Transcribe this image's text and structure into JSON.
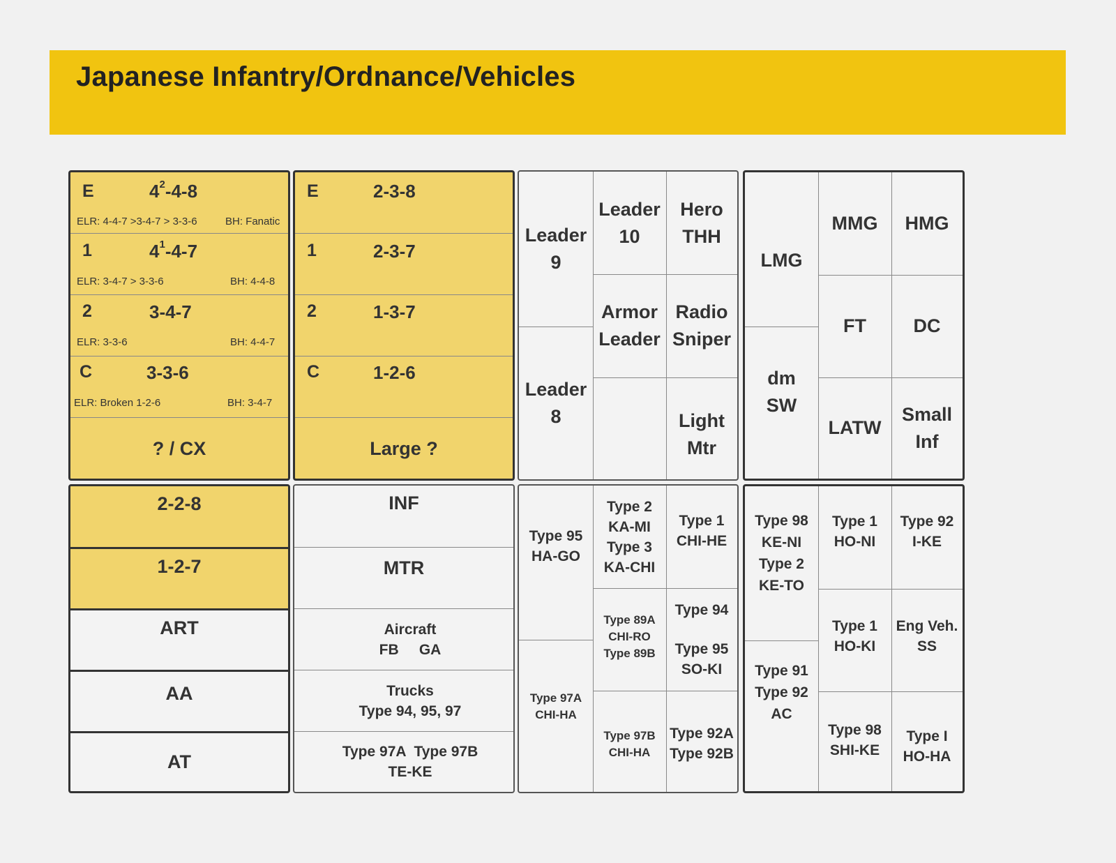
{
  "title": "Japanese Infantry/Ordnance/Vehicles",
  "squads": {
    "rows": [
      {
        "level": "E",
        "value": "4",
        "sup": "2",
        "rest": "-4-8",
        "elr": "ELR: 4-4-7 >3-4-7 > 3-3-6",
        "bh": "BH: Fanatic"
      },
      {
        "level": "1",
        "value": "4",
        "sup": "1",
        "rest": "-4-7",
        "elr": "ELR: 3-4-7 > 3-3-6",
        "bh": "BH: 4-4-8"
      },
      {
        "level": "2",
        "value": "3-4-7",
        "sup": "",
        "rest": "",
        "elr": "ELR: 3-3-6",
        "bh": "BH: 4-4-7"
      },
      {
        "level": "C",
        "value": "3-3-6",
        "sup": "",
        "rest": "",
        "elr": "ELR: Broken 1-2-6",
        "bh": "BH: 3-4-7"
      }
    ],
    "footer": "? / CX"
  },
  "half_squads": {
    "rows": [
      {
        "level": "E",
        "value": "2-3-8"
      },
      {
        "level": "1",
        "value": "2-3-7"
      },
      {
        "level": "2",
        "value": "1-3-7"
      },
      {
        "level": "C",
        "value": "1-2-6"
      }
    ],
    "footer": "Large ?"
  },
  "leaders": {
    "leader9": [
      "Leader",
      "9"
    ],
    "leader8": [
      "Leader",
      "8"
    ],
    "leader10": [
      "Leader",
      "10"
    ],
    "hero": [
      "Hero",
      "THH"
    ],
    "armor_leader": [
      "Armor",
      "Leader"
    ],
    "radio_sniper": [
      "Radio",
      "Sniper"
    ],
    "light_mtr": [
      "Light",
      "Mtr"
    ]
  },
  "weapons": {
    "lmg": "LMG",
    "dm_sw": [
      "dm",
      "SW"
    ],
    "mmg": "MMG",
    "hmg": "HMG",
    "ft": "FT",
    "dc": "DC",
    "latw": "LATW",
    "small_inf": [
      "Small",
      "Inf"
    ]
  },
  "crews": {
    "c1": "2-2-8",
    "c2": "1-2-7",
    "art": "ART",
    "aa": "AA",
    "at": "AT"
  },
  "ordnance": {
    "inf": "INF",
    "mtr": "MTR",
    "aircraft": [
      "Aircraft",
      "FB     GA"
    ],
    "trucks": [
      "Trucks",
      "Type 94, 95, 97"
    ],
    "type97": [
      "Type 97A  Type 97B",
      "TE-KE"
    ]
  },
  "tanks": {
    "type95": [
      "Type 95",
      "HA-GO"
    ],
    "type97a": [
      "Type 97A",
      "CHI-HA"
    ],
    "type2_3": [
      "Type 2",
      "KA-MI",
      "Type 3",
      "KA-CHI"
    ],
    "type89": [
      "Type 89A",
      "CHI-RO",
      "Type 89B"
    ],
    "type97b": [
      "Type 97B",
      "CHI-HA"
    ],
    "type1": [
      "Type 1",
      "CHI-HE"
    ],
    "type94_95": [
      "Type 94",
      "Type 95",
      "SO-KI"
    ],
    "type92a": [
      "Type 92A",
      "Type 92B"
    ]
  },
  "vehicles": {
    "type98": [
      "Type 98",
      "KE-NI",
      "Type 2",
      "KE-TO"
    ],
    "type91": [
      "Type 91",
      "Type 92",
      "AC"
    ],
    "honi": [
      "Type 1",
      "HO-NI"
    ],
    "hoki": [
      "Type 1",
      "HO-KI"
    ],
    "shike": [
      "Type 98",
      "SHI-KE"
    ],
    "ike": [
      "Type 92",
      "I-KE"
    ],
    "engveh": [
      "Eng Veh.",
      "SS"
    ],
    "hoha": [
      "Type I",
      "HO-HA"
    ]
  }
}
